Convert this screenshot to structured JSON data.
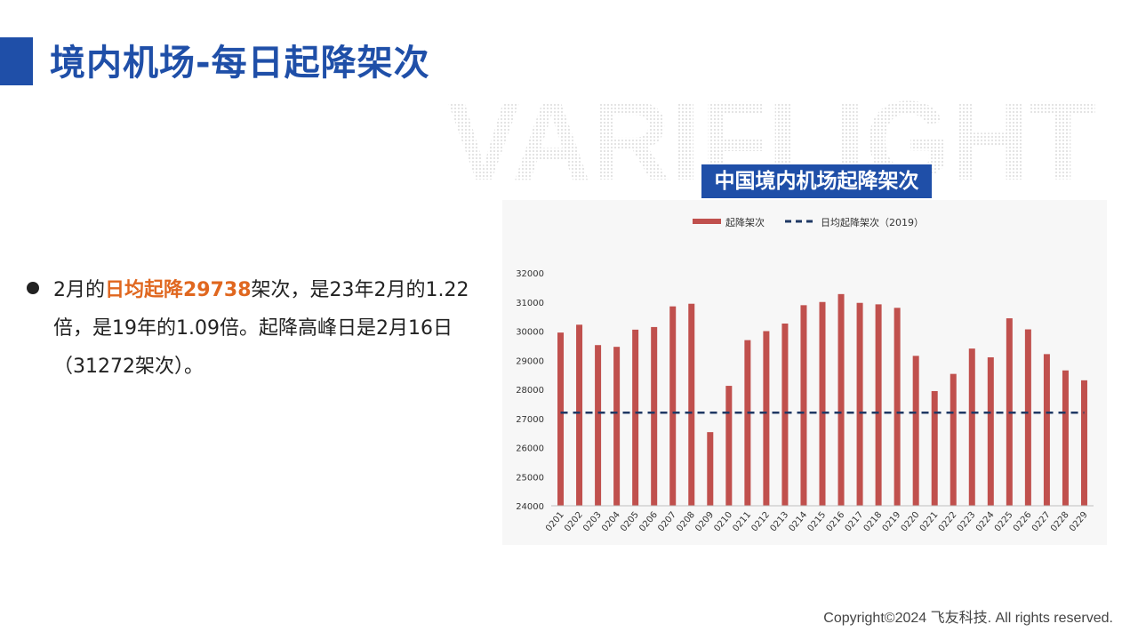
{
  "page": {
    "title": "境内机场-每日起降架次",
    "watermark": "VARIFLIGHT",
    "footer": "Copyright©2024 飞友科技. All rights reserved."
  },
  "bullet": {
    "part1": "2月的",
    "highlight": "日均起降29738",
    "part2": "架次，是23年2月的1.22倍，是19年的1.09倍。起降高峰日是2月16日（31272架次）。"
  },
  "colors": {
    "accent": "#1f4fa8",
    "bar": "#c0504d",
    "reference_line": "#1f3864",
    "highlight": "#e0671f"
  },
  "chart_data": {
    "type": "bar",
    "title": "中国境内机场起降架次",
    "categories": [
      "0201",
      "0202",
      "0203",
      "0204",
      "0205",
      "0206",
      "0207",
      "0208",
      "0209",
      "0210",
      "0211",
      "0212",
      "0213",
      "0214",
      "0215",
      "0216",
      "0217",
      "0218",
      "0219",
      "0220",
      "0221",
      "0222",
      "0223",
      "0224",
      "0225",
      "0226",
      "0227",
      "0228",
      "0229"
    ],
    "series": [
      {
        "name": "起降架次",
        "type": "bar",
        "values": [
          29950,
          30220,
          29520,
          29460,
          30050,
          30140,
          30850,
          30940,
          26530,
          28120,
          29690,
          30000,
          30260,
          30890,
          31000,
          31272,
          30970,
          30920,
          30800,
          29150,
          27940,
          28530,
          29400,
          29100,
          30440,
          30060,
          29210,
          28650,
          28310
        ]
      },
      {
        "name": "日均起降架次（2019）",
        "type": "line",
        "style": "dashed",
        "values": [
          27200,
          27200,
          27200,
          27200,
          27200,
          27200,
          27200,
          27200,
          27200,
          27200,
          27200,
          27200,
          27200,
          27200,
          27200,
          27200,
          27200,
          27200,
          27200,
          27200,
          27200,
          27200,
          27200,
          27200,
          27200,
          27200,
          27200,
          27200,
          27200
        ]
      }
    ],
    "ylim": [
      24000,
      32000
    ],
    "yticks": [
      24000,
      25000,
      26000,
      27000,
      28000,
      29000,
      30000,
      31000,
      32000
    ],
    "legend": "top-center",
    "grid": false
  }
}
